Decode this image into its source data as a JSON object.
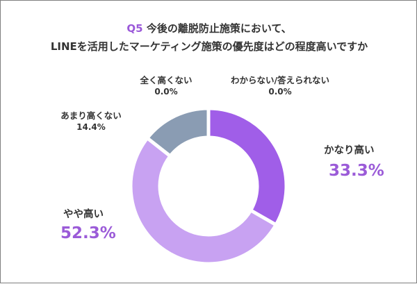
{
  "title": {
    "q": "Q5",
    "line1": "今後の離脱防止施策において、",
    "line2": "LINEを活用したマーケティング施策の優先度はどの程度高いですか"
  },
  "chart_data": {
    "type": "pie",
    "donut": true,
    "slices": [
      {
        "label": "かなり高い",
        "value": 33.3,
        "value_text": "33.3%",
        "color": "#a05ee8"
      },
      {
        "label": "やや高い",
        "value": 52.3,
        "value_text": "52.3%",
        "color": "#c8a2f2"
      },
      {
        "label": "あまり高くない",
        "value": 14.4,
        "value_text": "14.4%",
        "color": "#8a9cb3"
      },
      {
        "label": "全く高くない",
        "value": 0.0,
        "value_text": "0.0%",
        "color": "#cccccc"
      },
      {
        "label": "わからない/答えられない",
        "value": 0.0,
        "value_text": "0.0%",
        "color": "#dddddd"
      }
    ]
  }
}
